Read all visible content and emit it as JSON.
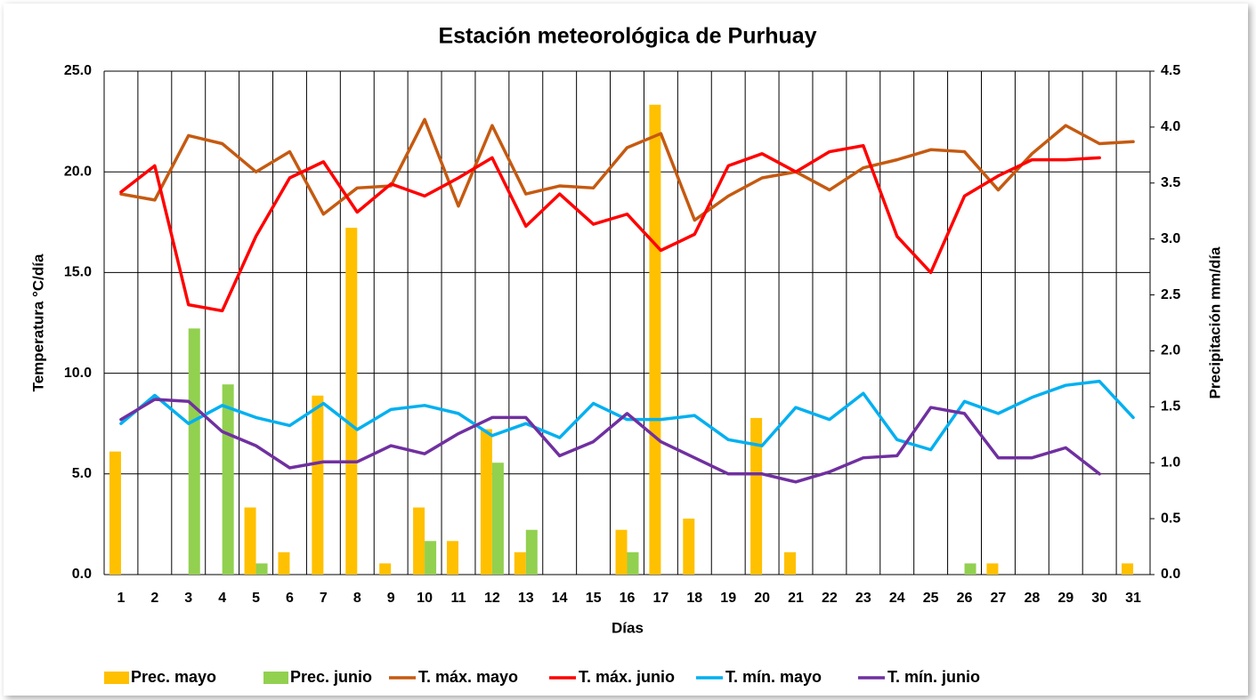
{
  "chart_data": {
    "type": "combo",
    "title": "Estación meteorológica de Purhuay",
    "x_label": "Días",
    "y_label": "Temperatura °C/día",
    "y2_label": "Precipitación mm/día",
    "categories": [
      "1",
      "2",
      "3",
      "4",
      "5",
      "6",
      "7",
      "8",
      "9",
      "10",
      "11",
      "12",
      "13",
      "14",
      "15",
      "16",
      "17",
      "18",
      "19",
      "20",
      "21",
      "22",
      "23",
      "24",
      "25",
      "26",
      "27",
      "28",
      "29",
      "30",
      "31"
    ],
    "ylim": [
      0,
      25
    ],
    "yticks": [
      {
        "value": 0,
        "label": "0.0"
      },
      {
        "value": 5,
        "label": "5.0"
      },
      {
        "value": 10,
        "label": "10.0"
      },
      {
        "value": 15,
        "label": "15.0"
      },
      {
        "value": 20,
        "label": "20.0"
      },
      {
        "value": 25,
        "label": "25.0"
      }
    ],
    "y2lim": [
      0,
      4.5
    ],
    "y2ticks": [
      {
        "value": 0,
        "label": "0.0"
      },
      {
        "value": 0.5,
        "label": "0.5"
      },
      {
        "value": 1,
        "label": "1.0"
      },
      {
        "value": 1.5,
        "label": "1.5"
      },
      {
        "value": 2,
        "label": "2.0"
      },
      {
        "value": 2.5,
        "label": "2.5"
      },
      {
        "value": 3,
        "label": "3.0"
      },
      {
        "value": 3.5,
        "label": "3.5"
      },
      {
        "value": 4,
        "label": "4.0"
      },
      {
        "value": 4.5,
        "label": "4.5"
      }
    ],
    "grid": true,
    "legend": "bottom",
    "series": [
      {
        "name": "Prec. mayo",
        "type": "bar",
        "axis": "y2",
        "color": "#FFC000",
        "values": [
          1.1,
          0,
          0,
          0,
          0.6,
          0.2,
          1.6,
          3.1,
          0.1,
          0.6,
          0.3,
          1.3,
          0.2,
          0,
          0,
          0.4,
          4.2,
          0.5,
          0,
          1.4,
          0.2,
          0,
          0,
          0,
          0,
          0,
          0.1,
          0,
          0,
          0,
          0.1
        ]
      },
      {
        "name": "Prec. junio",
        "type": "bar",
        "axis": "y2",
        "color": "#92D050",
        "values": [
          0,
          0,
          2.2,
          1.7,
          0.1,
          0,
          0,
          0,
          0,
          0.3,
          0,
          1.0,
          0.4,
          0,
          0,
          0.2,
          0,
          0,
          0,
          0,
          0,
          0,
          0,
          0,
          0,
          0.1,
          0,
          0,
          0,
          0,
          null
        ]
      },
      {
        "name": "T. máx. mayo",
        "type": "line",
        "color": "#C55A11",
        "values": [
          18.9,
          18.6,
          21.8,
          21.4,
          20.0,
          21.0,
          17.9,
          19.2,
          19.3,
          22.6,
          18.3,
          22.3,
          18.9,
          19.3,
          19.2,
          21.2,
          21.9,
          17.6,
          18.8,
          19.7,
          20.0,
          19.1,
          20.2,
          20.6,
          21.1,
          21.0,
          19.1,
          20.9,
          22.3,
          21.4,
          21.5
        ]
      },
      {
        "name": "T. máx. junio",
        "type": "line",
        "color": "#FF0000",
        "values": [
          19.0,
          20.3,
          13.4,
          13.1,
          16.8,
          19.7,
          20.5,
          18.0,
          19.4,
          18.8,
          19.7,
          20.7,
          17.3,
          18.9,
          17.4,
          17.9,
          16.1,
          16.9,
          20.3,
          20.9,
          20.0,
          21.0,
          21.3,
          16.8,
          15.0,
          18.8,
          19.8,
          20.6,
          20.6,
          20.7,
          null
        ]
      },
      {
        "name": "T. mín. mayo",
        "type": "line",
        "color": "#00B0F0",
        "values": [
          7.5,
          8.9,
          7.5,
          8.4,
          7.8,
          7.4,
          8.5,
          7.2,
          8.2,
          8.4,
          8.0,
          6.9,
          7.5,
          6.8,
          8.5,
          7.7,
          7.7,
          7.9,
          6.7,
          6.4,
          8.3,
          7.7,
          9.0,
          6.7,
          6.2,
          8.6,
          8.0,
          8.8,
          9.4,
          9.6,
          7.8
        ]
      },
      {
        "name": "T. mín. junio",
        "type": "line",
        "color": "#7030A0",
        "values": [
          7.7,
          8.7,
          8.6,
          7.1,
          6.4,
          5.3,
          5.6,
          5.6,
          6.4,
          6.0,
          7.0,
          7.8,
          7.8,
          5.9,
          6.6,
          8.0,
          6.6,
          5.8,
          5.0,
          5.0,
          4.6,
          5.1,
          5.8,
          5.9,
          8.3,
          8.0,
          5.8,
          5.8,
          6.3,
          5.0,
          null
        ]
      }
    ]
  }
}
